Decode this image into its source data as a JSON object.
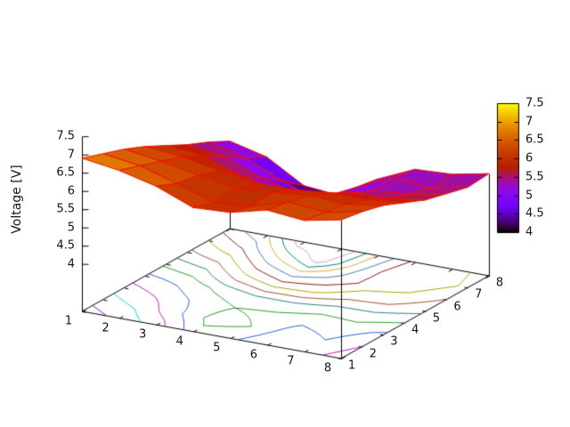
{
  "chart_data": {
    "type": "surface3d_contour",
    "title": "",
    "z_axis_label": "Voltage [V]",
    "x_values": [
      1,
      2,
      3,
      4,
      5,
      6,
      7,
      8
    ],
    "y_values": [
      1,
      2,
      3,
      4,
      5,
      6,
      7,
      8
    ],
    "z_grid": [
      [
        6.9,
        6.75,
        6.5,
        6.1,
        6.15,
        6.4,
        6.3,
        6.5
      ],
      [
        6.7,
        6.55,
        6.25,
        5.9,
        6.0,
        6.3,
        6.2,
        6.4
      ],
      [
        6.5,
        6.35,
        6.15,
        6.0,
        6.05,
        6.15,
        6.1,
        6.25
      ],
      [
        6.25,
        6.15,
        5.95,
        5.8,
        5.8,
        5.9,
        5.9,
        6.0
      ],
      [
        5.95,
        5.85,
        5.5,
        5.3,
        5.35,
        5.55,
        5.6,
        5.75
      ],
      [
        5.65,
        5.5,
        5.1,
        4.85,
        5.05,
        5.3,
        5.4,
        5.6
      ],
      [
        5.4,
        5.15,
        4.7,
        4.3,
        4.9,
        5.35,
        5.25,
        5.45
      ],
      [
        5.1,
        4.85,
        4.25,
        4.15,
        4.8,
        5.25,
        5.3,
        5.5
      ]
    ],
    "x_range": [
      1,
      8
    ],
    "y_range": [
      1,
      8
    ],
    "z_range": [
      4,
      7.5
    ],
    "x_tick_labels": [
      "1",
      "2",
      "3",
      "4",
      "5",
      "6",
      "7",
      "8"
    ],
    "y_tick_labels": [
      "1",
      "2",
      "3",
      "4",
      "5",
      "6",
      "7",
      "8"
    ],
    "z_tick_values": [
      4,
      4.5,
      5,
      5.5,
      6,
      6.5,
      7,
      7.5
    ],
    "z_tick_labels": [
      "4",
      "4.5",
      "5",
      "5.5",
      "6",
      "6.5",
      "7",
      "7.5"
    ],
    "colorbar": {
      "min": 4,
      "max": 7.5,
      "tick_values": [
        7.5,
        7,
        6.5,
        6,
        5.5,
        5,
        4.5,
        4
      ],
      "tick_labels": [
        "7.5",
        "7",
        "6.5",
        "6",
        "5.5",
        "5",
        "4.5",
        "4"
      ]
    },
    "palette": "gnuplot pm3d rgbformulae 7,5,15 (black-violet-red-orange-yellow)",
    "mesh_color": "#f01000",
    "axis_color": "#000000",
    "background": "#ffffff",
    "contour_levels": [
      4.4,
      4.6,
      4.8,
      5.0,
      5.2,
      5.4,
      5.6,
      5.8,
      6.0,
      6.2,
      6.4,
      6.6,
      6.8
    ],
    "contour_colors": [
      "#c8a0dc",
      "#00876c",
      "#e0a83c",
      "#4d7eb8",
      "#8b1a1a",
      "#a8a800",
      "#a0522d",
      "#2e7f7f",
      "#28a028",
      "#3060d8",
      "#c818c8",
      "#00d8d8",
      "#9400d3"
    ]
  }
}
